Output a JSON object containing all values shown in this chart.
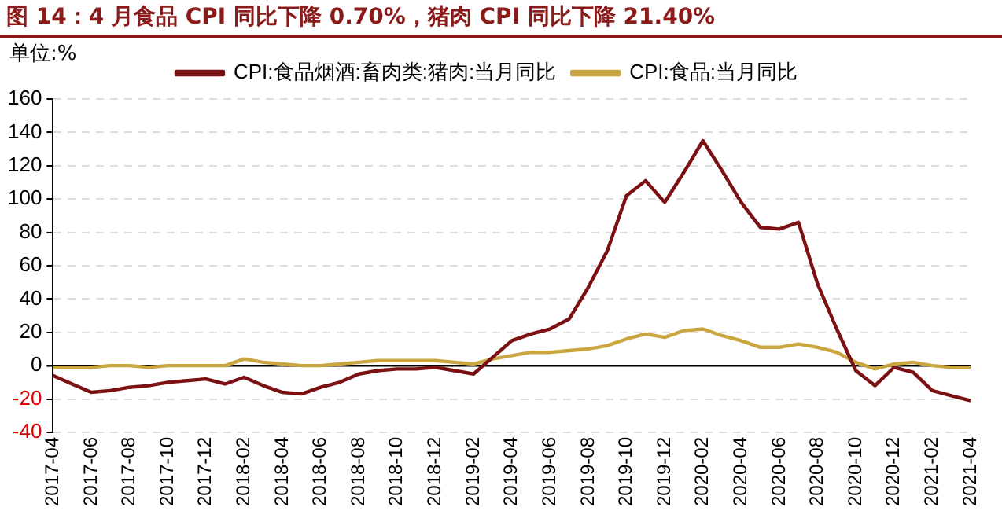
{
  "chart_data": {
    "type": "line",
    "title": "图 14：4 月食品 CPI 同比下降 0.70%，猪肉 CPI 同比下降 21.40%",
    "ylabel": "单位:%",
    "categories": [
      "2017-04",
      null,
      "2017-06",
      null,
      "2017-08",
      null,
      "2017-10",
      null,
      "2017-12",
      null,
      "2018-02",
      null,
      "2018-04",
      null,
      "2018-06",
      null,
      "2018-08",
      null,
      "2018-10",
      null,
      "2018-12",
      null,
      "2019-02",
      null,
      "2019-04",
      null,
      "2019-06",
      null,
      "2019-08",
      null,
      "2019-10",
      null,
      "2019-12",
      null,
      "2020-02",
      null,
      "2020-04",
      null,
      "2020-06",
      null,
      "2020-08",
      null,
      "2020-10",
      null,
      "2020-12",
      null,
      "2021-02",
      null,
      "2021-04"
    ],
    "series": [
      {
        "name": "CPI:食品烟酒:畜肉类:猪肉:当月同比",
        "color": "#7b1113",
        "values": [
          -6,
          -11,
          -16,
          -15,
          -13,
          -12,
          -10,
          -9,
          -8,
          -11,
          -7,
          -12,
          -16,
          -17,
          -13,
          -10,
          -5,
          -3,
          -2,
          -2,
          -1,
          -3,
          -5,
          5,
          15,
          19,
          22,
          28,
          47,
          69,
          102,
          111,
          98,
          116,
          135,
          117,
          98,
          83,
          82,
          86,
          49,
          22,
          -3,
          -12,
          -1,
          -4,
          -15,
          -18,
          -21
        ]
      },
      {
        "name": "CPI:食品:当月同比",
        "color": "#c9a640",
        "values": [
          -1,
          -1,
          -1,
          0,
          0,
          -1,
          0,
          0,
          0,
          0,
          4,
          2,
          1,
          0,
          0,
          1,
          2,
          3,
          3,
          3,
          3,
          2,
          1,
          4,
          6,
          8,
          8,
          9,
          10,
          12,
          16,
          19,
          17,
          21,
          22,
          18,
          15,
          11,
          11,
          13,
          11,
          8,
          2,
          -2,
          1,
          2,
          0,
          -1,
          -1
        ]
      }
    ],
    "ylim": [
      -40,
      160
    ],
    "yticks": [
      -40,
      -20,
      0,
      20,
      40,
      60,
      80,
      100,
      120,
      140,
      160
    ],
    "grid": "y",
    "legend": "top",
    "marker": "none",
    "line_style": "solid"
  }
}
